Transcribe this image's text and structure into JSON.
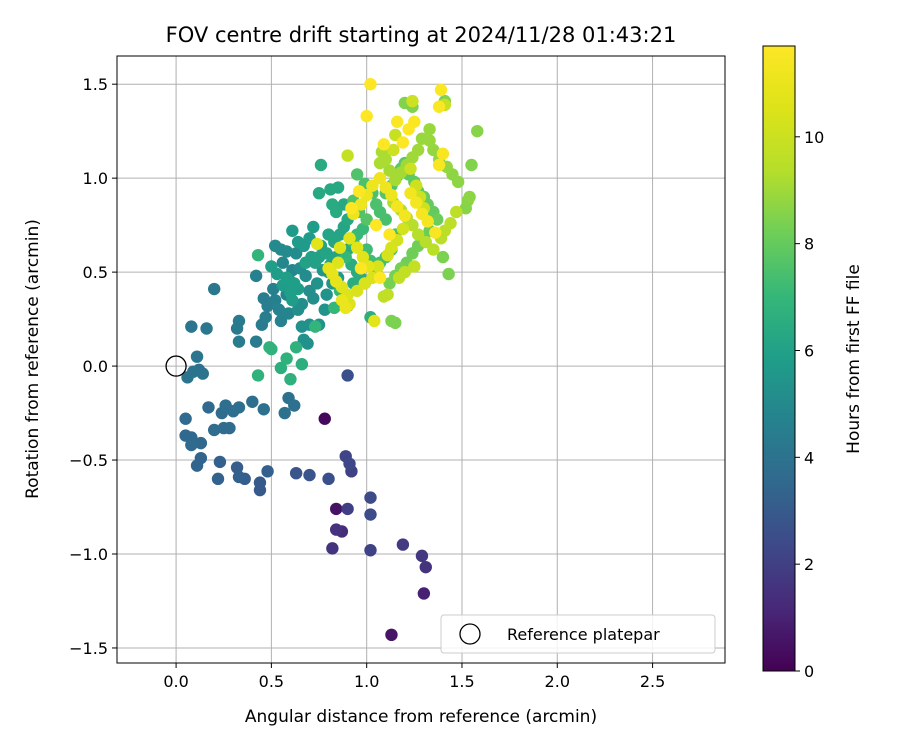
{
  "chart_data": {
    "type": "scatter",
    "title": "FOV centre drift starting at 2024/11/28 01:43:21",
    "xlabel": "Angular distance from reference (arcmin)",
    "ylabel": "Rotation from reference (arcmin)",
    "xlim": [
      -0.31,
      2.88
    ],
    "ylim": [
      -1.58,
      1.65
    ],
    "xticks": [
      0.0,
      0.5,
      1.0,
      1.5,
      2.0,
      2.5
    ],
    "xtick_labels": [
      "0.0",
      "0.5",
      "1.0",
      "1.5",
      "2.0",
      "2.5"
    ],
    "yticks": [
      -1.5,
      -1.0,
      -0.5,
      0.0,
      0.5,
      1.0,
      1.5
    ],
    "ytick_labels": [
      "−1.5",
      "−1.0",
      "−0.5",
      "0.0",
      "0.5",
      "1.0",
      "1.5"
    ],
    "grid": true,
    "colormap": "viridis",
    "colorbar": {
      "label": "Hours from first FF file",
      "range": [
        0,
        11.7
      ],
      "ticks": [
        0,
        2,
        4,
        6,
        8,
        10
      ],
      "tick_labels": [
        "0",
        "2",
        "4",
        "6",
        "8",
        "10"
      ]
    },
    "legend": {
      "placement": "lower-right",
      "entries": [
        "Reference platepar"
      ]
    },
    "reference": {
      "x": 0.0,
      "y": 0.0,
      "label": "Reference platepar"
    },
    "points": [
      [
        0.78,
        -0.28,
        0.2
      ],
      [
        0.84,
        -0.76,
        0.5
      ],
      [
        1.13,
        -1.43,
        0.6
      ],
      [
        1.3,
        -1.21,
        1.0
      ],
      [
        0.87,
        -0.88,
        1.3
      ],
      [
        0.84,
        -0.87,
        1.5
      ],
      [
        0.82,
        -0.97,
        1.6
      ],
      [
        1.31,
        -1.07,
        1.6
      ],
      [
        1.29,
        -1.01,
        1.7
      ],
      [
        1.19,
        -0.95,
        1.8
      ],
      [
        0.9,
        -0.76,
        2.0
      ],
      [
        1.02,
        -0.98,
        2.1
      ],
      [
        0.92,
        -0.56,
        2.1
      ],
      [
        0.89,
        -0.48,
        2.2
      ],
      [
        0.91,
        -0.52,
        2.3
      ],
      [
        1.02,
        -0.7,
        2.4
      ],
      [
        1.02,
        -0.79,
        2.5
      ],
      [
        0.8,
        -0.6,
        2.6
      ],
      [
        0.9,
        -0.05,
        2.6
      ],
      [
        0.7,
        -0.58,
        2.8
      ],
      [
        0.63,
        -0.57,
        2.8
      ],
      [
        0.44,
        -0.66,
        3.0
      ],
      [
        0.44,
        -0.62,
        3.0
      ],
      [
        0.36,
        -0.6,
        3.1
      ],
      [
        0.32,
        -0.54,
        3.1
      ],
      [
        0.33,
        -0.59,
        3.2
      ],
      [
        0.48,
        -0.56,
        3.2
      ],
      [
        0.23,
        -0.51,
        3.2
      ],
      [
        0.22,
        -0.6,
        3.3
      ],
      [
        0.11,
        -0.53,
        3.4
      ],
      [
        0.13,
        -0.49,
        3.4
      ],
      [
        0.13,
        -0.41,
        3.5
      ],
      [
        0.08,
        -0.38,
        3.5
      ],
      [
        0.05,
        -0.37,
        3.5
      ],
      [
        0.08,
        -0.42,
        3.6
      ],
      [
        0.05,
        -0.28,
        3.6
      ],
      [
        0.17,
        -0.22,
        3.6
      ],
      [
        0.2,
        -0.34,
        3.7
      ],
      [
        0.24,
        -0.25,
        3.7
      ],
      [
        0.25,
        -0.33,
        3.7
      ],
      [
        0.28,
        -0.33,
        3.7
      ],
      [
        0.26,
        -0.21,
        3.8
      ],
      [
        0.3,
        -0.24,
        3.8
      ],
      [
        0.33,
        -0.22,
        3.8
      ],
      [
        0.4,
        -0.19,
        3.8
      ],
      [
        0.46,
        -0.23,
        3.9
      ],
      [
        0.57,
        -0.25,
        3.9
      ],
      [
        0.59,
        -0.17,
        3.9
      ],
      [
        0.62,
        -0.21,
        3.9
      ],
      [
        0.12,
        -0.02,
        3.9
      ],
      [
        0.14,
        -0.04,
        4.0
      ],
      [
        0.06,
        -0.06,
        4.0
      ],
      [
        0.09,
        -0.03,
        4.0
      ],
      [
        0.11,
        0.05,
        4.1
      ],
      [
        0.08,
        0.21,
        4.1
      ],
      [
        0.16,
        0.2,
        4.2
      ],
      [
        0.2,
        0.41,
        4.2
      ],
      [
        0.32,
        0.2,
        4.3
      ],
      [
        0.33,
        0.24,
        4.3
      ],
      [
        0.33,
        0.13,
        4.4
      ],
      [
        0.42,
        0.13,
        4.4
      ],
      [
        0.45,
        0.22,
        4.4
      ],
      [
        0.47,
        0.26,
        4.5
      ],
      [
        0.48,
        0.32,
        4.5
      ],
      [
        0.46,
        0.36,
        4.5
      ],
      [
        0.42,
        0.48,
        4.6
      ],
      [
        0.51,
        0.41,
        4.6
      ],
      [
        0.52,
        0.35,
        4.6
      ],
      [
        0.54,
        0.3,
        4.7
      ],
      [
        0.55,
        0.24,
        4.7
      ],
      [
        0.59,
        0.28,
        4.8
      ],
      [
        0.58,
        0.38,
        4.8
      ],
      [
        0.6,
        0.45,
        4.8
      ],
      [
        0.61,
        0.51,
        4.9
      ],
      [
        0.56,
        0.55,
        4.9
      ],
      [
        0.52,
        0.64,
        5.0
      ],
      [
        0.55,
        0.62,
        5.0
      ],
      [
        0.58,
        0.61,
        5.0
      ],
      [
        0.63,
        0.6,
        5.1
      ],
      [
        0.65,
        0.52,
        5.1
      ],
      [
        0.68,
        0.48,
        5.1
      ],
      [
        0.7,
        0.4,
        5.2
      ],
      [
        0.72,
        0.36,
        5.2
      ],
      [
        0.66,
        0.33,
        5.2
      ],
      [
        0.64,
        0.3,
        5.2
      ],
      [
        0.66,
        0.21,
        5.3
      ],
      [
        0.7,
        0.22,
        5.3
      ],
      [
        0.67,
        0.14,
        5.3
      ],
      [
        0.69,
        0.12,
        5.3
      ],
      [
        0.75,
        0.22,
        5.4
      ],
      [
        0.78,
        0.3,
        5.4
      ],
      [
        0.79,
        0.38,
        5.4
      ],
      [
        0.74,
        0.44,
        5.4
      ],
      [
        0.77,
        0.51,
        5.5
      ],
      [
        0.8,
        0.5,
        5.5
      ],
      [
        0.82,
        0.44,
        5.5
      ],
      [
        0.85,
        0.47,
        5.6
      ],
      [
        0.87,
        0.41,
        5.6
      ],
      [
        0.88,
        0.34,
        5.6
      ],
      [
        0.9,
        0.32,
        5.6
      ],
      [
        0.61,
        0.72,
        5.7
      ],
      [
        0.64,
        0.66,
        5.7
      ],
      [
        0.67,
        0.64,
        5.7
      ],
      [
        0.7,
        0.68,
        5.7
      ],
      [
        0.72,
        0.74,
        5.8
      ],
      [
        0.64,
        0.41,
        5.8
      ],
      [
        0.61,
        0.35,
        5.8
      ],
      [
        0.56,
        0.43,
        5.8
      ],
      [
        0.53,
        0.49,
        5.8
      ],
      [
        0.5,
        0.53,
        5.9
      ],
      [
        0.58,
        0.47,
        5.9
      ],
      [
        0.6,
        0.39,
        5.9
      ],
      [
        0.62,
        0.44,
        5.9
      ],
      [
        0.68,
        0.55,
        6.0
      ],
      [
        0.71,
        0.58,
        6.0
      ],
      [
        0.73,
        0.55,
        6.0
      ],
      [
        0.75,
        0.58,
        6.0
      ],
      [
        0.79,
        0.6,
        6.1
      ],
      [
        0.81,
        0.54,
        6.1
      ],
      [
        0.84,
        0.58,
        6.1
      ],
      [
        0.76,
        0.64,
        6.1
      ],
      [
        0.8,
        0.7,
        6.2
      ],
      [
        0.83,
        0.66,
        6.2
      ],
      [
        0.86,
        0.7,
        6.2
      ],
      [
        0.88,
        0.74,
        6.2
      ],
      [
        0.9,
        0.78,
        6.3
      ],
      [
        0.88,
        0.86,
        6.3
      ],
      [
        0.85,
        0.95,
        6.3
      ],
      [
        0.81,
        0.94,
        6.3
      ],
      [
        0.75,
        0.92,
        6.3
      ],
      [
        0.76,
        1.07,
        6.4
      ],
      [
        0.82,
        0.86,
        6.4
      ],
      [
        0.84,
        0.82,
        6.4
      ],
      [
        0.9,
        0.62,
        6.4
      ],
      [
        0.92,
        0.54,
        6.5
      ],
      [
        0.95,
        0.5,
        6.5
      ],
      [
        0.93,
        0.44,
        6.5
      ],
      [
        0.97,
        0.47,
        6.5
      ],
      [
        0.99,
        0.44,
        6.6
      ],
      [
        1.02,
        0.26,
        6.6
      ],
      [
        0.66,
        0.01,
        6.6
      ],
      [
        0.55,
        -0.01,
        6.6
      ],
      [
        0.58,
        0.04,
        6.7
      ],
      [
        0.6,
        -0.07,
        6.7
      ],
      [
        0.63,
        0.1,
        6.7
      ],
      [
        0.5,
        0.09,
        6.8
      ],
      [
        0.43,
        -0.05,
        6.8
      ],
      [
        0.49,
        0.1,
        6.8
      ],
      [
        0.43,
        0.59,
        6.9
      ],
      [
        0.73,
        0.21,
        6.9
      ],
      [
        0.83,
        0.31,
        7.0
      ],
      [
        0.86,
        0.4,
        7.0
      ],
      [
        0.89,
        0.58,
        7.0
      ],
      [
        0.93,
        0.66,
        7.1
      ],
      [
        0.95,
        0.7,
        7.1
      ],
      [
        0.98,
        0.73,
        7.1
      ],
      [
        1.0,
        0.62,
        7.2
      ],
      [
        1.02,
        0.56,
        7.2
      ],
      [
        1.05,
        0.5,
        7.2
      ],
      [
        1.07,
        0.55,
        7.3
      ],
      [
        1.1,
        0.58,
        7.3
      ],
      [
        1.13,
        0.62,
        7.3
      ],
      [
        1.15,
        0.7,
        7.4
      ],
      [
        1.1,
        0.78,
        7.4
      ],
      [
        1.07,
        0.82,
        7.4
      ],
      [
        1.05,
        0.86,
        7.5
      ],
      [
        1.03,
        0.92,
        7.5
      ],
      [
        0.99,
        0.97,
        7.5
      ],
      [
        0.95,
        1.02,
        7.6
      ],
      [
        0.93,
        0.88,
        7.6
      ],
      [
        0.96,
        0.82,
        7.6
      ],
      [
        1.0,
        0.78,
        7.7
      ],
      [
        1.1,
        0.92,
        7.7
      ],
      [
        1.13,
        0.96,
        7.7
      ],
      [
        1.16,
        1.01,
        7.8
      ],
      [
        1.18,
        1.05,
        7.8
      ],
      [
        1.2,
        1.08,
        7.8
      ],
      [
        1.22,
        1.02,
        7.9
      ],
      [
        1.25,
        0.98,
        7.9
      ],
      [
        1.27,
        0.93,
        7.9
      ],
      [
        1.3,
        0.9,
        8.0
      ],
      [
        1.32,
        0.86,
        8.0
      ],
      [
        1.35,
        0.82,
        8.0
      ],
      [
        1.37,
        0.78,
        8.1
      ],
      [
        1.33,
        0.72,
        8.1
      ],
      [
        1.3,
        0.68,
        8.1
      ],
      [
        1.27,
        0.64,
        8.2
      ],
      [
        1.24,
        0.6,
        8.2
      ],
      [
        1.21,
        0.55,
        8.2
      ],
      [
        1.18,
        0.52,
        8.3
      ],
      [
        1.15,
        0.48,
        8.3
      ],
      [
        1.12,
        0.44,
        8.3
      ],
      [
        1.4,
        0.58,
        8.4
      ],
      [
        1.43,
        0.49,
        8.4
      ],
      [
        1.15,
        0.23,
        8.4
      ],
      [
        1.13,
        0.24,
        8.4
      ],
      [
        1.24,
        1.38,
        8.5
      ],
      [
        1.2,
        1.4,
        8.5
      ],
      [
        1.41,
        1.41,
        8.5
      ],
      [
        1.55,
        1.07,
        8.5
      ],
      [
        1.58,
        1.25,
        8.6
      ],
      [
        1.52,
        0.84,
        8.6
      ],
      [
        1.53,
        0.88,
        8.6
      ],
      [
        1.54,
        0.9,
        8.7
      ],
      [
        1.48,
        0.98,
        8.7
      ],
      [
        1.45,
        1.02,
        8.7
      ],
      [
        1.42,
        1.06,
        8.8
      ],
      [
        1.38,
        1.1,
        8.8
      ],
      [
        1.35,
        1.15,
        8.8
      ],
      [
        1.33,
        1.2,
        8.9
      ],
      [
        1.33,
        1.26,
        8.9
      ],
      [
        1.29,
        1.21,
        8.9
      ],
      [
        1.27,
        1.15,
        9.0
      ],
      [
        1.24,
        1.11,
        9.0
      ],
      [
        1.21,
        1.07,
        9.0
      ],
      [
        1.18,
        1.03,
        9.1
      ],
      [
        1.15,
        0.99,
        9.1
      ],
      [
        1.12,
        1.04,
        9.1
      ],
      [
        1.1,
        1.1,
        9.2
      ],
      [
        1.08,
        1.14,
        9.2
      ],
      [
        1.07,
        1.08,
        9.2
      ],
      [
        1.14,
        0.87,
        9.3
      ],
      [
        1.18,
        0.83,
        9.3
      ],
      [
        1.21,
        0.79,
        9.3
      ],
      [
        1.24,
        0.75,
        9.4
      ],
      [
        1.27,
        0.7,
        9.4
      ],
      [
        1.31,
        0.66,
        9.4
      ],
      [
        1.35,
        0.62,
        9.5
      ],
      [
        1.39,
        0.68,
        9.5
      ],
      [
        1.41,
        0.72,
        9.5
      ],
      [
        1.44,
        0.76,
        9.6
      ],
      [
        1.47,
        0.82,
        9.6
      ],
      [
        1.09,
        0.37,
        9.6
      ],
      [
        1.11,
        0.38,
        9.7
      ],
      [
        1.17,
        0.47,
        9.7
      ],
      [
        1.2,
        0.5,
        9.7
      ],
      [
        1.25,
        0.53,
        9.8
      ],
      [
        0.9,
        1.12,
        9.8
      ],
      [
        1.15,
        1.23,
        9.9
      ],
      [
        1.41,
        1.39,
        9.9
      ],
      [
        1.14,
        1.15,
        10.0
      ],
      [
        1.24,
        1.41,
        10.0
      ],
      [
        1.23,
        1.05,
        10.0
      ],
      [
        1.26,
        0.96,
        10.1
      ],
      [
        1.28,
        0.9,
        10.1
      ],
      [
        1.3,
        0.84,
        10.1
      ],
      [
        1.19,
        0.73,
        10.2
      ],
      [
        1.16,
        0.67,
        10.2
      ],
      [
        1.13,
        0.63,
        10.3
      ],
      [
        1.11,
        0.59,
        10.3
      ],
      [
        1.06,
        0.53,
        10.3
      ],
      [
        1.03,
        0.47,
        10.4
      ],
      [
        0.99,
        0.44,
        10.4
      ],
      [
        0.95,
        0.4,
        10.4
      ],
      [
        0.9,
        0.38,
        10.5
      ],
      [
        0.91,
        0.33,
        10.5
      ],
      [
        0.87,
        0.42,
        10.6
      ],
      [
        0.85,
        0.55,
        10.6
      ],
      [
        0.86,
        0.63,
        10.6
      ],
      [
        0.91,
        0.68,
        10.7
      ],
      [
        0.95,
        0.63,
        10.7
      ],
      [
        0.98,
        0.58,
        10.7
      ],
      [
        1.01,
        0.53,
        10.8
      ],
      [
        1.04,
        0.24,
        10.8
      ],
      [
        0.74,
        0.65,
        10.8
      ],
      [
        0.8,
        0.52,
        10.9
      ],
      [
        0.82,
        0.49,
        10.9
      ],
      [
        0.84,
        0.45,
        10.9
      ],
      [
        0.87,
        0.35,
        11.0
      ],
      [
        0.89,
        0.31,
        11.0
      ],
      [
        0.93,
        0.81,
        11.0
      ],
      [
        0.97,
        0.86,
        11.1
      ],
      [
        1.0,
        0.91,
        11.1
      ],
      [
        1.03,
        0.96,
        11.1
      ],
      [
        1.07,
        1.0,
        11.2
      ],
      [
        1.1,
        0.95,
        11.2
      ],
      [
        1.13,
        0.91,
        11.2
      ],
      [
        1.16,
        0.85,
        11.3
      ],
      [
        1.2,
        0.8,
        11.3
      ],
      [
        1.23,
        0.92,
        11.3
      ],
      [
        1.26,
        0.87,
        11.4
      ],
      [
        1.29,
        0.81,
        11.4
      ],
      [
        1.32,
        0.77,
        11.4
      ],
      [
        1.36,
        0.71,
        11.5
      ],
      [
        1.4,
        1.13,
        11.5
      ],
      [
        1.38,
        1.07,
        11.5
      ],
      [
        1.39,
        1.47,
        11.6
      ],
      [
        1.38,
        1.38,
        11.6
      ],
      [
        1.25,
        1.3,
        11.6
      ],
      [
        1.16,
        1.3,
        11.6
      ],
      [
        1.0,
        1.33,
        11.7
      ],
      [
        1.02,
        1.5,
        11.7
      ],
      [
        1.22,
        1.26,
        11.7
      ],
      [
        1.19,
        1.19,
        11.7
      ],
      [
        1.09,
        1.18,
        11.7
      ],
      [
        0.96,
        0.93,
        11.7
      ],
      [
        0.92,
        0.84,
        11.7
      ],
      [
        1.05,
        0.75,
        11.7
      ],
      [
        1.12,
        0.7,
        11.7
      ],
      [
        0.97,
        0.52,
        11.7
      ],
      [
        1.07,
        0.47,
        11.7
      ]
    ]
  }
}
